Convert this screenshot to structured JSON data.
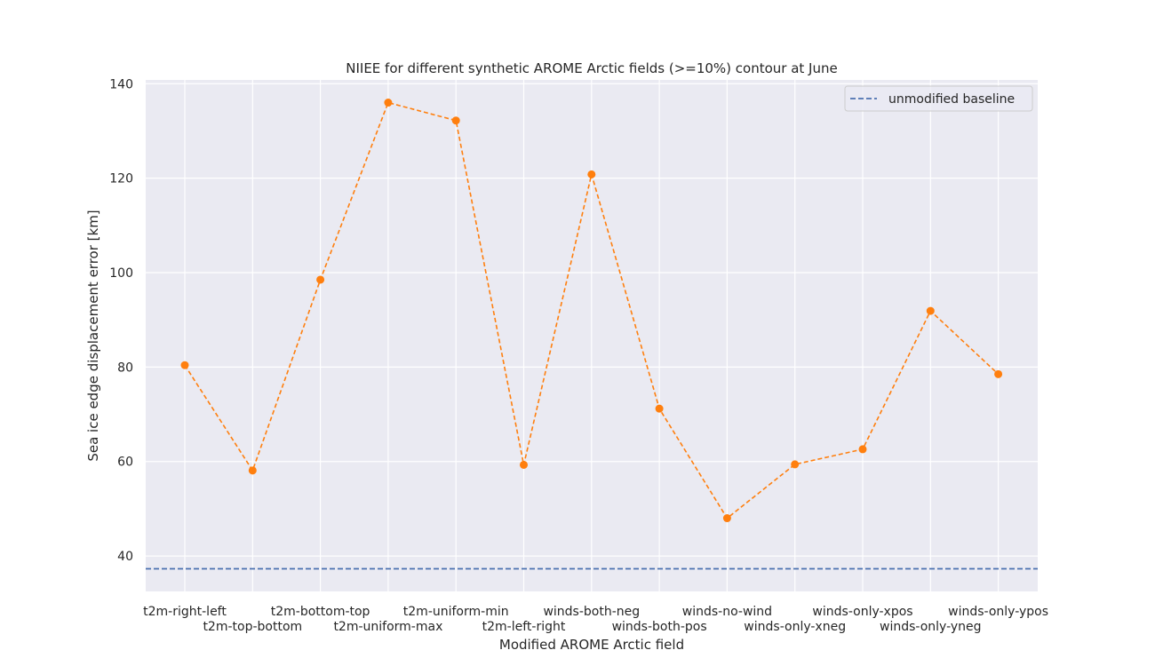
{
  "chart_data": {
    "type": "line",
    "title": "NIIEE for different synthetic AROME Arctic fields (>=10%) contour at June",
    "xlabel": "Modified AROME Arctic field",
    "ylabel": "Sea ice edge displacement error [km]",
    "categories": [
      "t2m-right-left",
      "t2m-top-bottom",
      "t2m-bottom-top",
      "t2m-uniform-max",
      "t2m-uniform-min",
      "t2m-left-right",
      "winds-both-neg",
      "winds-both-pos",
      "winds-no-wind",
      "winds-only-xneg",
      "winds-only-xpos",
      "winds-only-yneg",
      "winds-only-ypos"
    ],
    "values": [
      80.4,
      58.1,
      98.5,
      136.0,
      132.2,
      59.3,
      120.8,
      71.2,
      48.0,
      59.4,
      62.6,
      91.9,
      78.5
    ],
    "baseline": {
      "name": "unmodified baseline",
      "value": 37.3
    },
    "yticks": [
      40,
      60,
      80,
      100,
      120,
      140
    ],
    "ylim": [
      32.5,
      140.8
    ],
    "grid": true,
    "legend": "top-right",
    "colors": {
      "series": "#ff7f0e",
      "baseline": "#4c72b0",
      "plot_bg": "#eaeaf2",
      "grid": "#ffffff"
    }
  }
}
